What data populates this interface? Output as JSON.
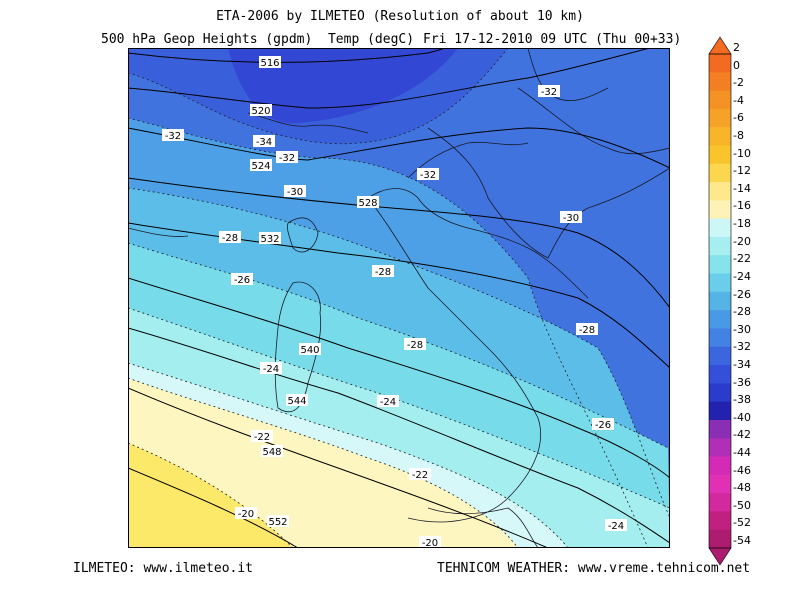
{
  "title": "ETA-2006 by ILMETEO (Resolution of about 10 km)",
  "subtitle": {
    "fields": "500 hPa Geop Heights (gpdm)  Temp (degC)",
    "time": "Fri 17-12-2010 09 UTC (Thu 00+33)"
  },
  "footer": {
    "left": "ILMETEO: www.ilmeteo.it",
    "right": "TEHNICOM WEATHER: www.vreme.tehnicom.net"
  },
  "colorbar": {
    "labels": [
      "2",
      "0",
      "-2",
      "-4",
      "-6",
      "-8",
      "-10",
      "-12",
      "-14",
      "-16",
      "-18",
      "-20",
      "-22",
      "-24",
      "-26",
      "-28",
      "-30",
      "-32",
      "-34",
      "-36",
      "-38",
      "-40",
      "-42",
      "-44",
      "-46",
      "-48",
      "-50",
      "-52",
      "-54"
    ],
    "colors": [
      "#f26b21",
      "#f37f22",
      "#f59225",
      "#f6a228",
      "#f8b52a",
      "#fac52c",
      "#fcd64f",
      "#fde88c",
      "#fdf3b6",
      "#cdf7f7",
      "#a6eef0",
      "#86e3ec",
      "#6acde9",
      "#56b3e6",
      "#4a99e4",
      "#4381e2",
      "#3a66de",
      "#3450d9",
      "#2b3ccd",
      "#2222ae",
      "#8a2eb6",
      "#b02fb6",
      "#d42bb6",
      "#e031b5",
      "#d2299e",
      "#c02180",
      "#ad1d6f"
    ]
  },
  "map_labels": {
    "height": [
      "516",
      "520",
      "524",
      "528",
      "532",
      "540",
      "544",
      "548",
      "552"
    ],
    "temp": [
      "-32",
      "-34",
      "-32",
      "-32",
      "-32",
      "-30",
      "-30",
      "-28",
      "-28",
      "-26",
      "-28",
      "-28",
      "-24",
      "-24",
      "-26",
      "-22",
      "-22",
      "-20",
      "-24",
      "-20"
    ]
  }
}
